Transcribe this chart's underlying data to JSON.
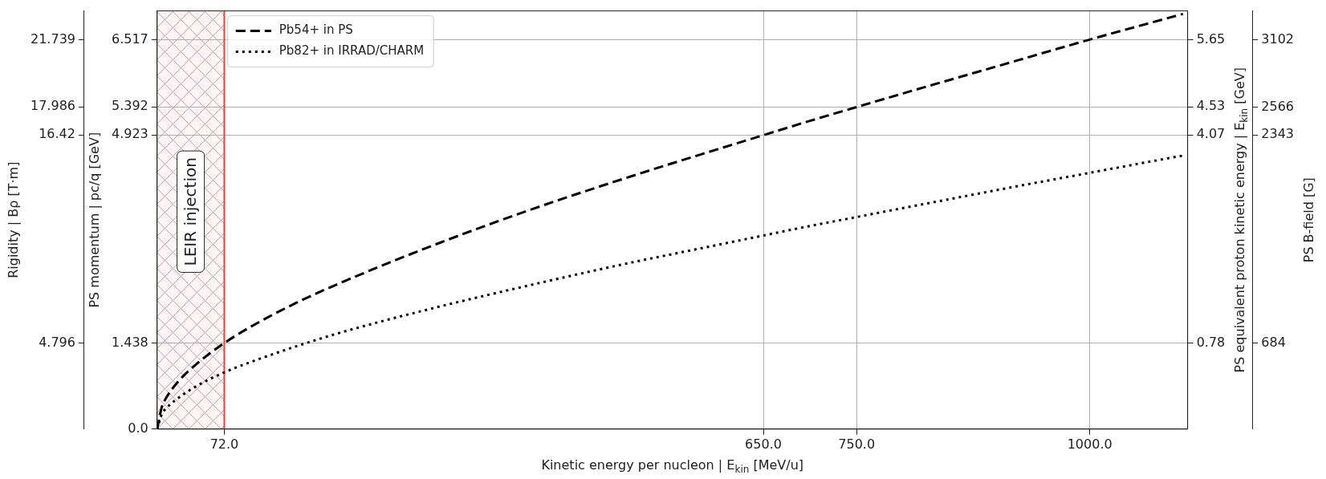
{
  "chart_data": {
    "type": "line",
    "xlabel": "Kinetic energy per nucleon | E$_{kin}$ [MeV/u]",
    "ylabel": "PS momentum | pc/q [GeV]",
    "y2label": "Rigidity | Bρ [T·m]",
    "y3label": "PS B-field [G]",
    "annotations": [
      "PS equivalent proton kinetic energy | E$_{kin}$ [GeV]",
      "0.78",
      "4.07",
      "4.53",
      "5.65"
    ],
    "x": [
      0,
      5,
      10,
      20,
      40,
      72,
      100,
      150,
      200,
      300,
      400,
      500,
      600,
      650,
      700,
      750,
      800,
      900,
      1000,
      1100
    ],
    "series": [
      {
        "name": "Pb54+ in PS",
        "color": "#000000",
        "line_style": "dashed",
        "values": [
          0,
          0.37,
          0.53,
          0.75,
          1.06,
          1.44,
          1.71,
          2.12,
          2.47,
          3.1,
          3.67,
          4.19,
          4.68,
          4.92,
          5.16,
          5.39,
          5.62,
          6.07,
          6.52,
          6.95
        ]
      },
      {
        "name": "Pb82+ in IRRAD/CHARM",
        "color": "#000000",
        "line_style": "dotted",
        "values": [
          0,
          0.25,
          0.35,
          0.49,
          0.7,
          0.95,
          1.12,
          1.39,
          1.63,
          2.04,
          2.41,
          2.76,
          3.08,
          3.24,
          3.4,
          3.55,
          3.7,
          4.0,
          4.29,
          4.58
        ]
      }
    ],
    "xlim": [
      0,
      1105
    ],
    "xticks": [
      {
        "value": 72,
        "label": "72.0"
      },
      {
        "value": 650,
        "label": "650.0"
      },
      {
        "value": 750,
        "label": "750.0"
      },
      {
        "value": 1000,
        "label": "1000.0"
      }
    ],
    "ylim": [
      0,
      7
    ],
    "yticks": [
      {
        "value": 0,
        "label": "0.0"
      },
      1.438,
      4.923,
      5.392,
      6.517
    ],
    "y2lim": [
      0,
      23.35
    ],
    "y2ticks": [
      4.796,
      16.42,
      17.986,
      21.739
    ],
    "y3lim": [
      0,
      3332
    ],
    "y3ticks": [
      684,
      2343,
      2566,
      3102
    ],
    "bands": [
      {
        "axis": "x",
        "from": 0,
        "to": 72,
        "label": "LEIR injection",
        "color": "#f28b8b"
      }
    ],
    "ref_lines": [
      {
        "axis": "x",
        "value": 72,
        "color": "#e8413c"
      }
    ],
    "grid": true,
    "legend": "top left",
    "marker": "none"
  }
}
